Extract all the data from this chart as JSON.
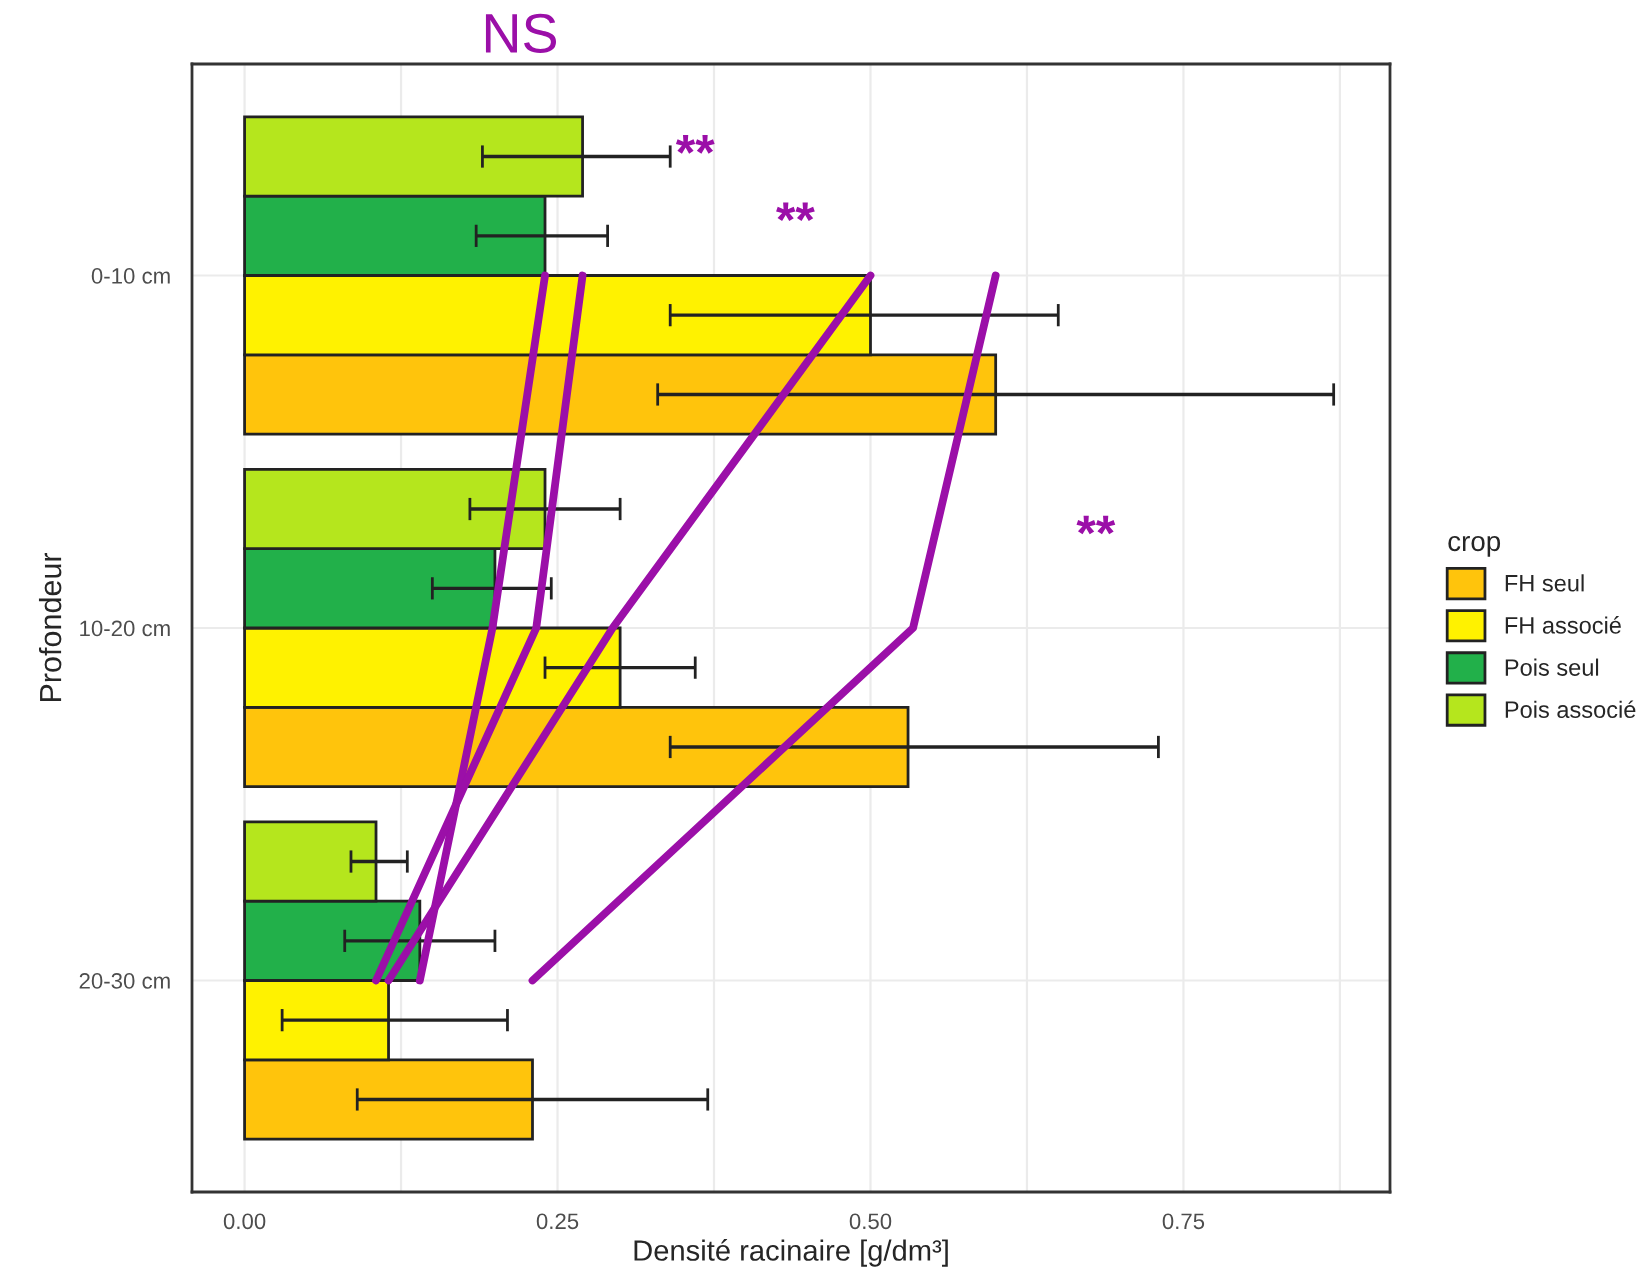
{
  "chart_data": {
    "type": "bar",
    "orientation": "horizontal",
    "xlabel": "Densité racinaire [g/dm³]",
    "ylabel": "Profondeur",
    "legend_title": "crop",
    "legend": "right",
    "categories": [
      "0-10 cm",
      "10-20 cm",
      "20-30 cm"
    ],
    "series": [
      {
        "name": "FH seul",
        "color": "#ffc40c",
        "values": [
          0.6,
          0.53,
          0.23
        ],
        "errors": [
          [
            0.33,
            0.87
          ],
          [
            0.34,
            0.73
          ],
          [
            0.09,
            0.37
          ]
        ]
      },
      {
        "name": "FH associé",
        "color": "#fff200",
        "values": [
          0.5,
          0.3,
          0.115
        ],
        "errors": [
          [
            0.34,
            0.65
          ],
          [
            0.24,
            0.36
          ],
          [
            0.03,
            0.21
          ]
        ]
      },
      {
        "name": "Pois seul",
        "color": "#22b04a",
        "values": [
          0.24,
          0.2,
          0.14
        ],
        "errors": [
          [
            0.185,
            0.29
          ],
          [
            0.15,
            0.245
          ],
          [
            0.08,
            0.2
          ]
        ]
      },
      {
        "name": "Pois associé",
        "color": "#b5e61d",
        "values": [
          0.27,
          0.24,
          0.105
        ],
        "errors": [
          [
            0.19,
            0.34
          ],
          [
            0.18,
            0.3
          ],
          [
            0.085,
            0.13
          ]
        ]
      },
      {
        "type": "line",
        "color": "#9b0fa8",
        "values": [
          0.6,
          0.534,
          0.23
        ]
      },
      {
        "type": "line",
        "color": "#9b0fa8",
        "values": [
          0.5,
          0.294,
          0.115
        ]
      },
      {
        "type": "line",
        "color": "#9b0fa8",
        "values": [
          0.24,
          0.198,
          0.14
        ]
      },
      {
        "type": "line",
        "color": "#9b0fa8",
        "values": [
          0.27,
          0.233,
          0.105
        ]
      }
    ],
    "xlim": [
      -0.042,
      0.915
    ],
    "xticks": [
      {
        "value": 0,
        "label": "0.00"
      },
      {
        "value": 0.125,
        "label": null
      },
      {
        "value": 0.25,
        "label": "0.25"
      },
      {
        "value": 0.375,
        "label": null
      },
      {
        "value": 0.5,
        "label": "0.50"
      },
      {
        "value": 0.625,
        "label": null
      },
      {
        "value": 0.75,
        "label": "0.75"
      },
      {
        "value": 0.875,
        "label": null
      }
    ],
    "grid": true,
    "annotations": [
      "NS",
      "**",
      "**",
      "**"
    ]
  }
}
